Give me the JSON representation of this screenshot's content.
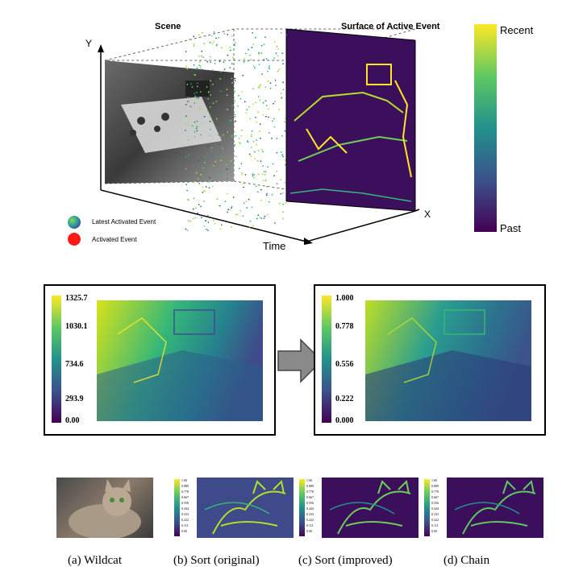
{
  "top_diagram": {
    "scene_label": "Scene",
    "surface_label": "Surface of Active Event",
    "axis_y": "Y",
    "axis_x": "X",
    "axis_time": "Time",
    "legend": [
      {
        "label": "Latest Activated Event",
        "color": "#3aa0a0"
      },
      {
        "label": "Activated Event",
        "color": "#ff1a1a"
      }
    ],
    "colorbar": {
      "top_label": "Recent",
      "bottom_label": "Past"
    }
  },
  "middle_panels": {
    "left_colorbar_ticks": [
      "1325.7",
      "1030.1",
      "734.6",
      "293.9",
      "0.00"
    ],
    "right_colorbar_ticks": [
      "1.000",
      "0.778",
      "0.556",
      "0.222",
      "0.000"
    ]
  },
  "bottom_row": {
    "mini_ticks": [
      "1.00",
      "0.889",
      "0.778",
      "0.667",
      "0.556",
      "0.444",
      "0.333",
      "0.222",
      "0.111",
      "0.00"
    ],
    "captions": [
      "(a) Wildcat",
      "(b) Sort (original)",
      "(c) Sort (improved)",
      "(d) Chain"
    ]
  },
  "colors": {
    "viridis_top": "#fde725",
    "viridis_mid": "#21918c",
    "viridis_bottom": "#440154",
    "arrow": "#8a8a8a"
  }
}
